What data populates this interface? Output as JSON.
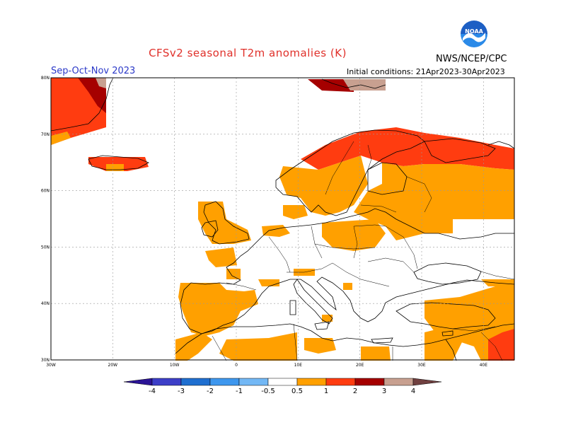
{
  "header": {
    "title": "CFSv2 seasonal T2m anomalies (K)",
    "agency": "NWS/NCEP/CPC",
    "season": "Sep-Oct-Nov 2023",
    "initial_conditions": "Initial conditions: 21Apr2023-30Apr2023",
    "logo_text": "NOAA"
  },
  "map": {
    "lat_labels": [
      "80N",
      "70N",
      "60N",
      "50N",
      "40N",
      "30N"
    ],
    "lon_labels": [
      "30W",
      "20W",
      "10W",
      "0",
      "10E",
      "20E",
      "30E",
      "40E"
    ],
    "extent": {
      "lon_min": -30,
      "lon_max": 45,
      "lat_min": 30,
      "lat_max": 80
    }
  },
  "colorbar": {
    "labels": [
      "-4",
      "-3",
      "-2",
      "-1",
      "-0.5",
      "0.5",
      "1",
      "2",
      "3",
      "4"
    ],
    "colors": {
      "below_-4": "#2b1496",
      "-4_-3": "#3d3fc8",
      "-3_-2": "#1f6fd0",
      "-2_-1": "#3e97ee",
      "-1_-0.5": "#73b8f5",
      "-0.5_0.5": "#ffffff",
      "0.5_1": "#ffa000",
      "1_2": "#ff3c10",
      "2_3": "#a50000",
      "3_4": "#c8a090",
      "above_4": "#704040"
    }
  }
}
